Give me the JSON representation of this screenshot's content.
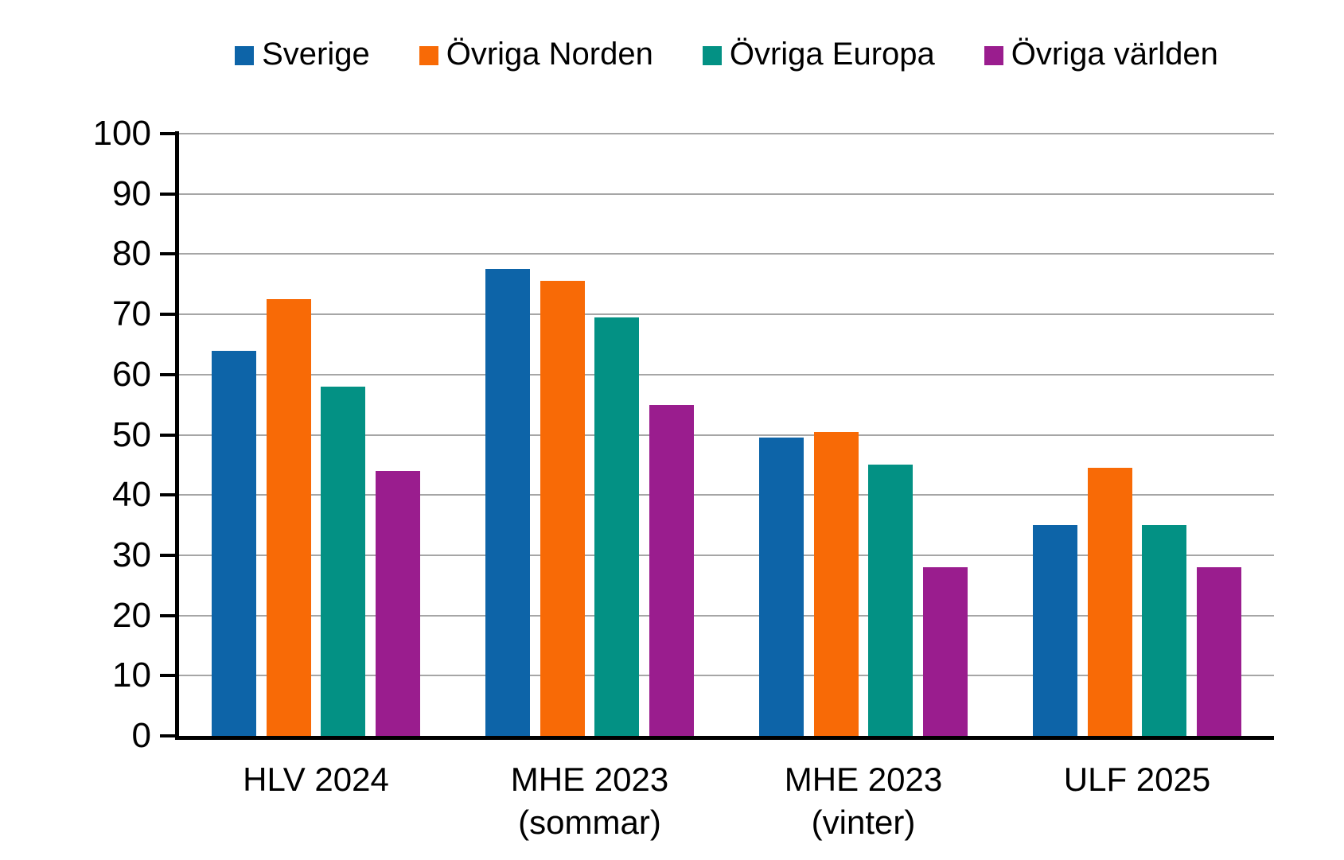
{
  "chart_data": {
    "type": "bar",
    "title": "",
    "categories": [
      "HLV 2024",
      "MHE 2023\n(sommar)",
      "MHE 2023\n(vinter)",
      "ULF 2025"
    ],
    "series": [
      {
        "name": "Sverige",
        "color": "#0D64A8",
        "values": [
          64,
          77.5,
          49.5,
          35
        ]
      },
      {
        "name": "Övriga Norden",
        "color": "#F86A06",
        "values": [
          72.5,
          75.5,
          50.5,
          44.5
        ]
      },
      {
        "name": "Övriga Europa",
        "color": "#039184",
        "values": [
          58,
          69.5,
          45,
          35
        ]
      },
      {
        "name": "Övriga världen",
        "color": "#9A1D8E",
        "values": [
          44,
          55,
          28,
          28
        ]
      }
    ],
    "xlabel": "",
    "ylabel": "",
    "ylim": [
      0,
      100
    ],
    "ytick_step": 10,
    "ytick_labels": [
      "0",
      "10",
      "20",
      "30",
      "40",
      "50",
      "60",
      "70",
      "80",
      "90",
      "100"
    ],
    "grid": true,
    "legend_position": "top"
  },
  "colors": {
    "background": "#FFFFFF",
    "grid": "#A6A6A6",
    "axis": "#000000",
    "text": "#000000"
  }
}
